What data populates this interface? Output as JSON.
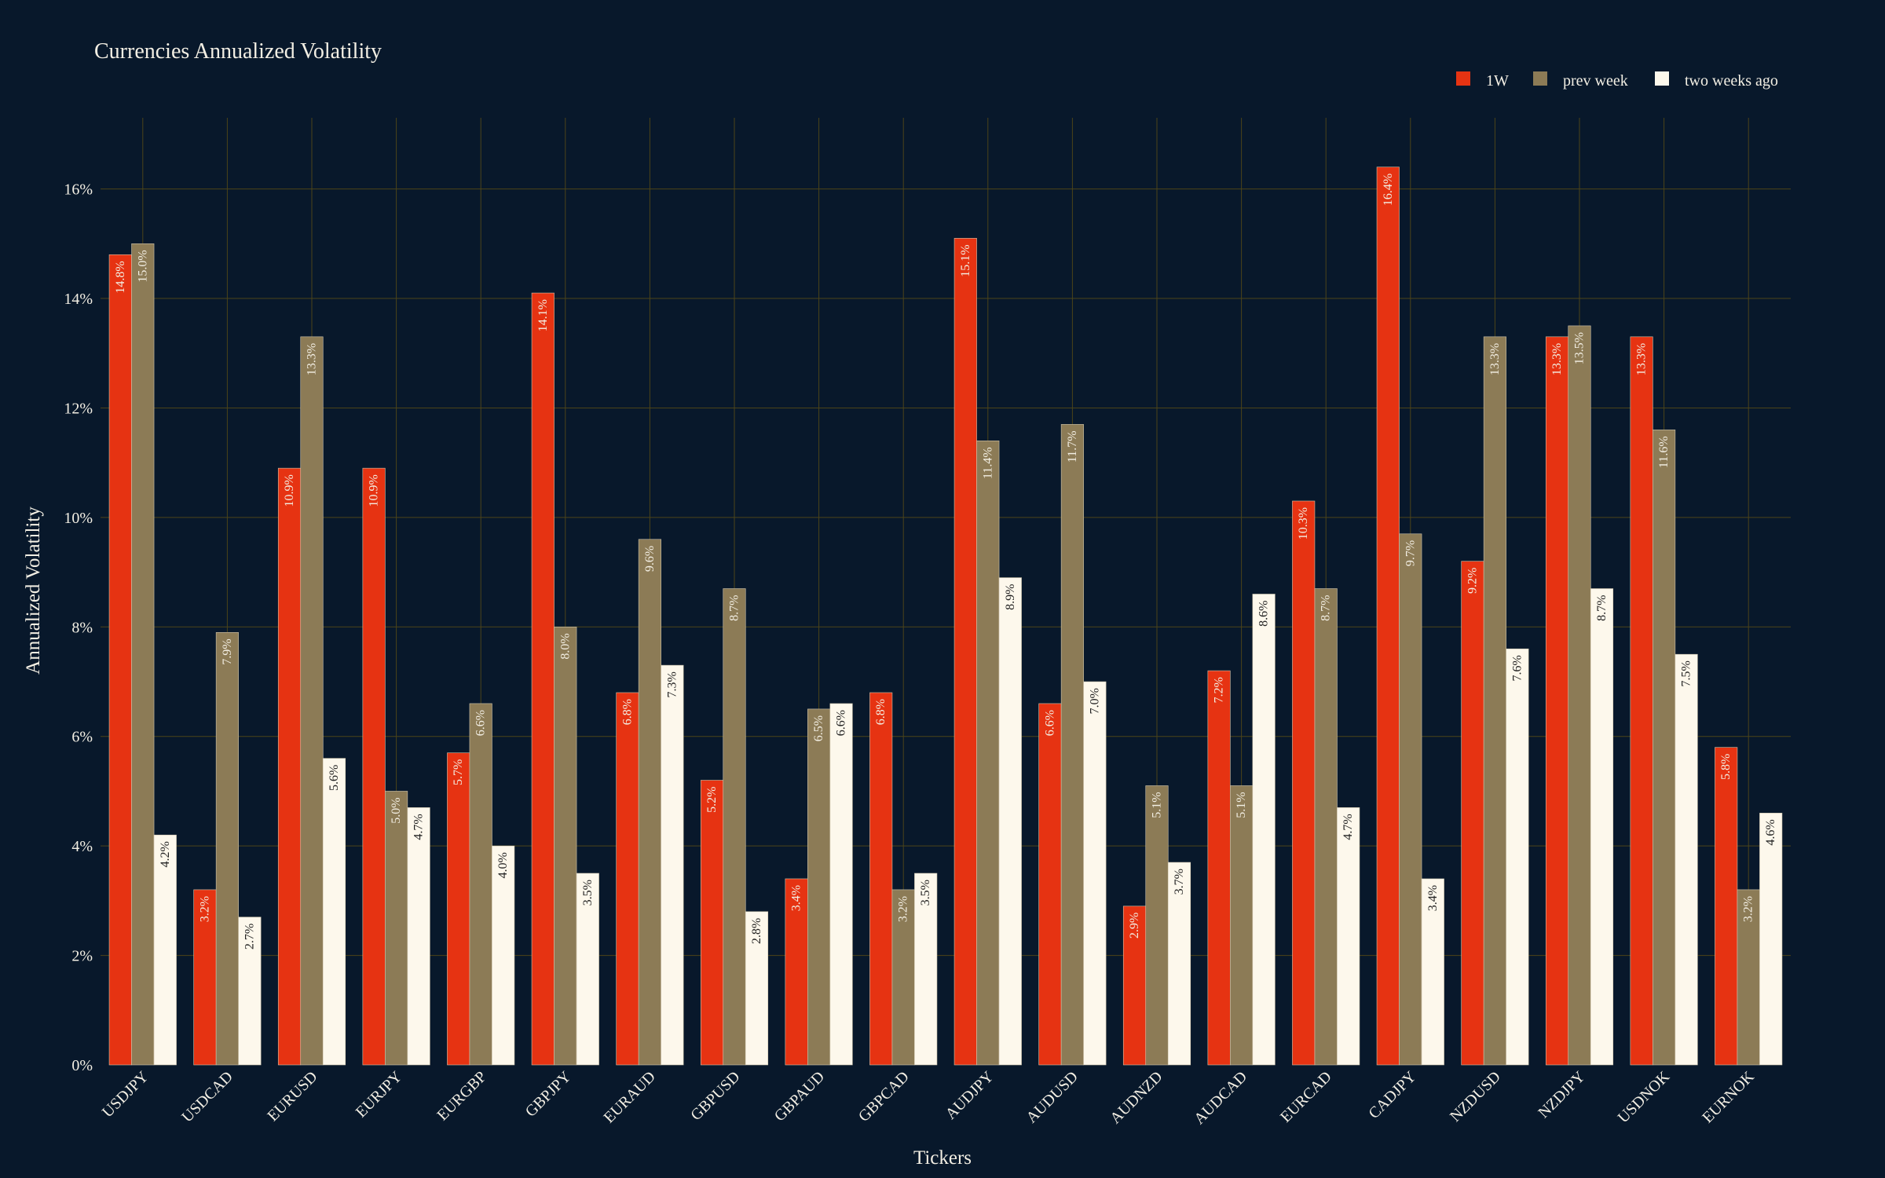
{
  "chart_data": {
    "type": "bar",
    "title": "Currencies Annualized Volatility",
    "xlabel": "Tickers",
    "ylabel": "Annualized Volatility",
    "ylim": [
      0,
      17.3
    ],
    "yticks": [
      "0%",
      "2%",
      "4%",
      "6%",
      "8%",
      "10%",
      "12%",
      "14%",
      "16%"
    ],
    "grid": true,
    "legend_position": "top-right",
    "categories": [
      "USDJPY",
      "USDCAD",
      "EURUSD",
      "EURJPY",
      "EURGBP",
      "GBPJPY",
      "EURAUD",
      "GBPUSD",
      "GBPAUD",
      "GBPCAD",
      "AUDJPY",
      "AUDUSD",
      "AUDNZD",
      "AUDCAD",
      "EURCAD",
      "CADJPY",
      "NZDUSD",
      "NZDJPY",
      "USDNOK",
      "EURNOK"
    ],
    "series": [
      {
        "name": "1W",
        "color": "#e63312",
        "text_color": "#f3efe4",
        "values": [
          14.8,
          3.2,
          10.9,
          10.9,
          5.7,
          14.1,
          6.8,
          5.2,
          3.4,
          6.8,
          15.1,
          6.6,
          2.9,
          7.2,
          10.3,
          16.4,
          9.2,
          13.3,
          13.3,
          5.8
        ],
        "labels": [
          "14.8%",
          "3.2%",
          "10.9%",
          "10.9%",
          "5.7%",
          "14.1%",
          "6.8%",
          "5.2%",
          "3.4%",
          "6.8%",
          "15.1%",
          "6.6%",
          "2.9%",
          "7.2%",
          "10.3%",
          "16.4%",
          "9.2%",
          "13.3%",
          "13.3%",
          "5.8%"
        ]
      },
      {
        "name": "prev week",
        "color": "#8c7b56",
        "text_color": "#f3efe4",
        "values": [
          15.0,
          7.9,
          13.3,
          5.0,
          6.6,
          8.0,
          9.6,
          8.7,
          6.5,
          3.2,
          11.4,
          11.7,
          5.1,
          5.1,
          8.7,
          9.7,
          13.3,
          13.5,
          11.6,
          3.2
        ],
        "labels": [
          "15.0%",
          "7.9%",
          "13.3%",
          "5.0%",
          "6.6%",
          "8.0%",
          "9.6%",
          "8.7%",
          "6.5%",
          "3.2%",
          "11.4%",
          "11.7%",
          "5.1%",
          "5.1%",
          "8.7%",
          "9.7%",
          "13.3%",
          "13.5%",
          "11.6%",
          "3.2%"
        ]
      },
      {
        "name": "two weeks ago",
        "color": "#fdf8ec",
        "text_color": "#222222",
        "values": [
          4.2,
          2.7,
          5.6,
          4.7,
          4.0,
          3.5,
          7.3,
          2.8,
          6.6,
          3.5,
          8.9,
          7.0,
          3.7,
          8.6,
          4.7,
          3.4,
          7.6,
          8.7,
          7.5,
          4.6
        ],
        "labels": [
          "4.2%",
          "2.7%",
          "5.6%",
          "4.7%",
          "4.0%",
          "3.5%",
          "7.3%",
          "2.8%",
          "6.6%",
          "3.5%",
          "8.9%",
          "7.0%",
          "3.7%",
          "8.6%",
          "4.7%",
          "3.4%",
          "7.6%",
          "8.7%",
          "7.5%",
          "4.6%"
        ]
      }
    ]
  }
}
